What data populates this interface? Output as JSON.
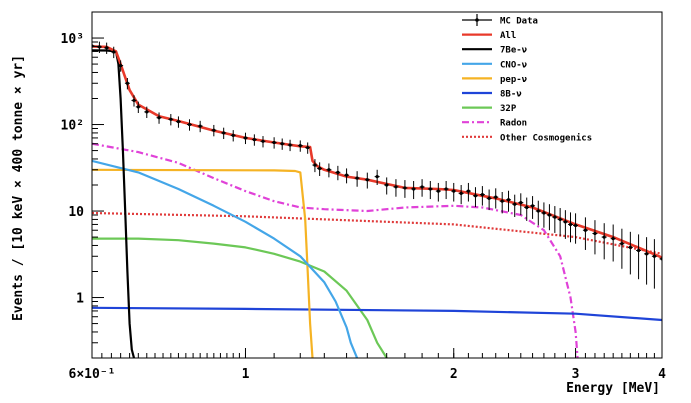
{
  "chart_data": {
    "type": "line",
    "title": "",
    "xlabel": "Energy [MeV]",
    "ylabel": "Events / [10 keV × 400 tonne × yr]",
    "x_scale": "log",
    "y_scale": "log",
    "xlim": [
      0.6,
      4.0
    ],
    "ylim": [
      0.2,
      2000
    ],
    "grid": false,
    "legend_position": "top-right",
    "x_ticks": [
      {
        "value": 0.6,
        "label": "6×10⁻¹"
      },
      {
        "value": 1,
        "label": "1"
      },
      {
        "value": 2,
        "label": "2"
      },
      {
        "value": 3,
        "label": "3"
      },
      {
        "value": 4,
        "label": "4"
      }
    ],
    "y_ticks": [
      {
        "value": 1,
        "label": "1"
      },
      {
        "value": 10,
        "label": "10"
      },
      {
        "value": 100,
        "label": "10²"
      },
      {
        "value": 1000,
        "label": "10³"
      }
    ],
    "series": [
      {
        "name": "All",
        "color": "#e8392a",
        "style": "solid",
        "x": [
          0.6,
          0.63,
          0.65,
          0.66,
          0.68,
          0.7,
          0.75,
          0.8,
          0.9,
          1.0,
          1.1,
          1.2,
          1.24,
          1.25,
          1.27,
          1.3,
          1.4,
          1.5,
          1.7,
          1.9,
          2.0,
          2.2,
          2.3,
          2.6,
          3.0,
          3.4,
          4.0
        ],
        "y": [
          800,
          790,
          700,
          500,
          250,
          170,
          125,
          110,
          85,
          70,
          62,
          56,
          55,
          38,
          33,
          30,
          25,
          23,
          18.5,
          18,
          17.5,
          15,
          14,
          11,
          7,
          5,
          2.9
        ]
      },
      {
        "name": "7Be-ν",
        "color": "#000000",
        "style": "solid",
        "x": [
          0.6,
          0.63,
          0.65,
          0.655,
          0.66,
          0.665,
          0.67,
          0.675,
          0.68,
          0.685,
          0.69
        ],
        "y": [
          720,
          718,
          700,
          500,
          200,
          50,
          10,
          2,
          0.5,
          0.25,
          0.2
        ]
      },
      {
        "name": "CNO-ν",
        "color": "#44a6e8",
        "style": "solid",
        "x": [
          0.6,
          0.7,
          0.8,
          0.9,
          1.0,
          1.1,
          1.2,
          1.3,
          1.35,
          1.4,
          1.42,
          1.45
        ],
        "y": [
          38,
          28,
          18,
          11.5,
          7.5,
          4.8,
          3.0,
          1.5,
          0.9,
          0.45,
          0.3,
          0.2
        ]
      },
      {
        "name": "pep-ν",
        "color": "#f5b324",
        "style": "solid",
        "x": [
          0.6,
          1.1,
          1.18,
          1.2,
          1.22,
          1.23,
          1.24,
          1.25
        ],
        "y": [
          30,
          29.5,
          29,
          28,
          8,
          2,
          0.5,
          0.2
        ]
      },
      {
        "name": "8B-ν",
        "color": "#1f44d8",
        "style": "solid",
        "x": [
          0.6,
          1.0,
          2.0,
          3.0,
          4.0
        ],
        "y": [
          0.76,
          0.74,
          0.7,
          0.65,
          0.55
        ]
      },
      {
        "name": "32P",
        "color": "#6cc857",
        "style": "solid",
        "x": [
          0.6,
          0.7,
          0.8,
          0.9,
          1.0,
          1.1,
          1.2,
          1.3,
          1.4,
          1.5,
          1.55,
          1.6
        ],
        "y": [
          4.8,
          4.8,
          4.6,
          4.2,
          3.8,
          3.2,
          2.6,
          2.0,
          1.2,
          0.55,
          0.3,
          0.2
        ]
      },
      {
        "name": "Radon",
        "color": "#e042d8",
        "style": "dash-dot",
        "x": [
          0.6,
          0.7,
          0.8,
          0.9,
          1.0,
          1.1,
          1.2,
          1.3,
          1.5,
          1.7,
          2.0,
          2.2,
          2.5,
          2.7,
          2.85,
          2.95,
          3.0,
          3.02
        ],
        "y": [
          60,
          48,
          36,
          24,
          17,
          13,
          11,
          10.5,
          10,
          11,
          11.5,
          11,
          9,
          6,
          3,
          1,
          0.4,
          0.2
        ]
      },
      {
        "name": "Other Cosmogenics",
        "color": "#e03a3a",
        "style": "dotted",
        "x": [
          0.6,
          1.0,
          2.0,
          3.0,
          4.0
        ],
        "y": [
          9.5,
          8.7,
          7.0,
          5.0,
          3.2
        ]
      }
    ],
    "mc_data": {
      "name": "MC Data",
      "color": "#000000",
      "x": [
        0.6,
        0.615,
        0.63,
        0.645,
        0.66,
        0.675,
        0.69,
        0.7,
        0.72,
        0.75,
        0.78,
        0.8,
        0.83,
        0.86,
        0.9,
        0.93,
        0.96,
        1.0,
        1.03,
        1.06,
        1.1,
        1.13,
        1.16,
        1.2,
        1.23,
        1.26,
        1.28,
        1.32,
        1.36,
        1.4,
        1.45,
        1.5,
        1.55,
        1.6,
        1.65,
        1.7,
        1.75,
        1.8,
        1.85,
        1.9,
        1.95,
        2.0,
        2.05,
        2.1,
        2.15,
        2.2,
        2.25,
        2.3,
        2.35,
        2.4,
        2.45,
        2.5,
        2.55,
        2.6,
        2.65,
        2.7,
        2.75,
        2.8,
        2.85,
        2.9,
        2.95,
        3.0,
        3.1,
        3.2,
        3.3,
        3.4,
        3.5,
        3.6,
        3.7,
        3.8,
        3.9,
        4.0
      ],
      "y": [
        810,
        790,
        770,
        690,
        480,
        300,
        190,
        160,
        140,
        120,
        115,
        108,
        100,
        96,
        86,
        80,
        75,
        70,
        67,
        64,
        62,
        60,
        58,
        57,
        54,
        34,
        31,
        30,
        28,
        26,
        24,
        23,
        25,
        20,
        19,
        18.5,
        18,
        19,
        18,
        17,
        18,
        17,
        16,
        17,
        15,
        15.5,
        14,
        14.5,
        13,
        13.5,
        12,
        12.5,
        11,
        11.5,
        10,
        9.5,
        9,
        8.5,
        8,
        7.5,
        7,
        6.8,
        6,
        5.5,
        5,
        4.8,
        4.2,
        3.8,
        3.5,
        3.2,
        3.0,
        2.8
      ]
    }
  }
}
